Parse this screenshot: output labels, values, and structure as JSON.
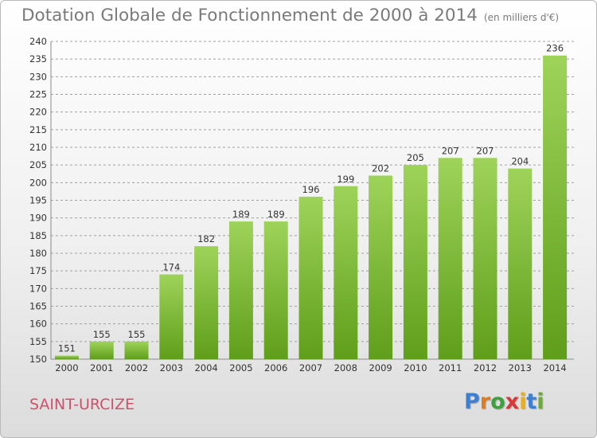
{
  "header": {
    "title": "Dotation Globale de Fonctionnement de 2000 à 2014",
    "units": "(en milliers d'€)"
  },
  "footer": {
    "town": "SAINT-URCIZE",
    "logo_text": "Proxiti"
  },
  "colors": {
    "bar_light": "#9ed35a",
    "bar_dark": "#5f9e1a",
    "grid": "#a0a0a0",
    "axis_text": "#333333",
    "town": "#d0506a"
  },
  "chart_data": {
    "type": "bar",
    "title": "Dotation Globale de Fonctionnement de 2000 à 2014",
    "xlabel": "",
    "ylabel": "",
    "categories": [
      "2000",
      "2001",
      "2002",
      "2003",
      "2004",
      "2005",
      "2006",
      "2007",
      "2008",
      "2009",
      "2010",
      "2011",
      "2012",
      "2013",
      "2014"
    ],
    "values": [
      151,
      155,
      155,
      174,
      182,
      189,
      189,
      196,
      199,
      202,
      205,
      207,
      207,
      204,
      236
    ],
    "ylim": [
      150,
      240
    ],
    "ytick_step": 5,
    "grid": "horizontal dashed",
    "legend": "none"
  }
}
